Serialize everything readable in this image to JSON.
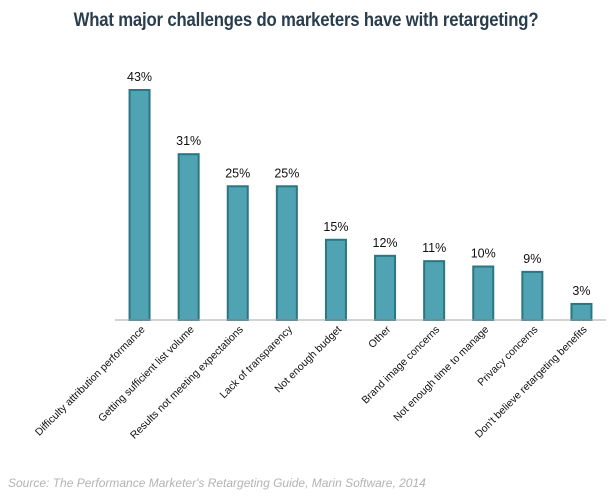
{
  "chart_data": {
    "type": "bar",
    "title": "What major challenges do marketers have with retargeting?",
    "categories": [
      "Difficulty attribution performance",
      "Getting sufficient list volume",
      "Results not meeting expectations",
      "Lack of transparency",
      "Not enough budget",
      "Other",
      "Brand image concerns",
      "Not enough time to manage",
      "Privacy concerns",
      "Don't believe retargeting benefits"
    ],
    "values": [
      43,
      31,
      25,
      25,
      15,
      12,
      11,
      10,
      9,
      3
    ],
    "value_labels": [
      "43%",
      "31%",
      "25%",
      "25%",
      "15%",
      "12%",
      "11%",
      "10%",
      "9%",
      "3%"
    ],
    "xlabel": "",
    "ylabel": "",
    "ylim": [
      0,
      43
    ],
    "grid": false,
    "legend": "none",
    "colors": {
      "bar_fill": "#4fa3b3",
      "bar_stroke": "#2c7583",
      "axis": "#a6a6a6"
    },
    "source": "Source: The Performance Marketer's Retargeting Guide, Marin Software, 2014"
  }
}
